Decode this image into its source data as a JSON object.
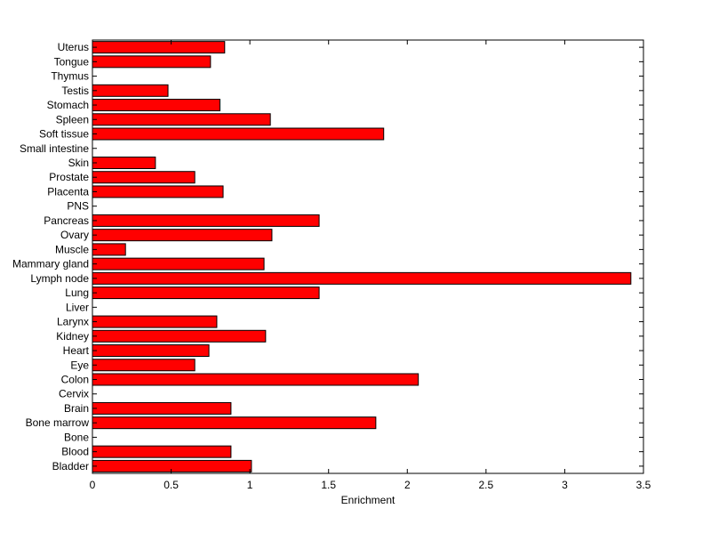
{
  "chart_data": {
    "type": "bar",
    "orientation": "horizontal",
    "title": "",
    "xlabel": "Enrichment",
    "ylabel": "",
    "xlim": [
      0,
      3.5
    ],
    "xticks": [
      "0",
      "0.5",
      "1",
      "1.5",
      "2",
      "2.5",
      "3",
      "3.5"
    ],
    "grid": false,
    "bar_color": "#ff0000",
    "bar_edge_color": "#000000",
    "categories": [
      "Bladder",
      "Blood",
      "Bone",
      "Bone marrow",
      "Brain",
      "Cervix",
      "Colon",
      "Eye",
      "Heart",
      "Kidney",
      "Larynx",
      "Liver",
      "Lung",
      "Lymph node",
      "Mammary gland",
      "Muscle",
      "Ovary",
      "Pancreas",
      "PNS",
      "Placenta",
      "Prostate",
      "Skin",
      "Small intestine",
      "Soft tissue",
      "Spleen",
      "Stomach",
      "Testis",
      "Thymus",
      "Tongue",
      "Uterus"
    ],
    "values": [
      1.01,
      0.88,
      0,
      1.8,
      0.88,
      0,
      2.07,
      0.65,
      0.74,
      1.1,
      0.79,
      0,
      1.44,
      3.42,
      1.09,
      0.21,
      1.14,
      1.44,
      0,
      0.83,
      0.65,
      0.4,
      0,
      1.85,
      1.13,
      0.81,
      0.48,
      0,
      0.75,
      0.84
    ]
  }
}
